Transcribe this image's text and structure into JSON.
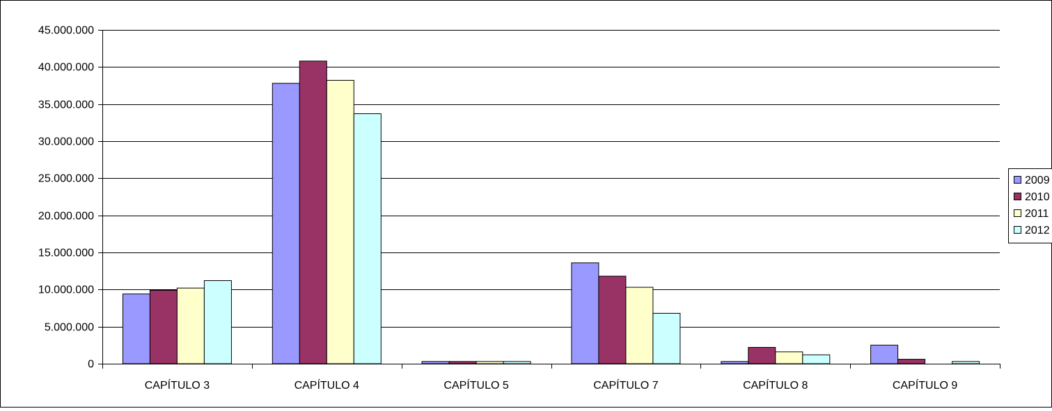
{
  "chart_data": {
    "type": "bar",
    "title": "",
    "xlabel": "",
    "ylabel": "",
    "categories": [
      "CAPÍTULO 3",
      "CAPÍTULO 4",
      "CAPÍTULO 5",
      "CAPÍTULO 7",
      "CAPÍTULO 8",
      "CAPÍTULO 9"
    ],
    "series": [
      {
        "name": "2009",
        "color": "#9999ff",
        "values": [
          9400000,
          37800000,
          300000,
          13600000,
          300000,
          2500000
        ]
      },
      {
        "name": "2010",
        "color": "#993366",
        "values": [
          9900000,
          40800000,
          300000,
          11800000,
          2200000,
          600000
        ]
      },
      {
        "name": "2011",
        "color": "#ffffcc",
        "values": [
          10200000,
          38200000,
          300000,
          10300000,
          1600000,
          0
        ]
      },
      {
        "name": "2012",
        "color": "#ccffff",
        "values": [
          11200000,
          33700000,
          300000,
          6800000,
          1200000,
          300000
        ]
      }
    ],
    "ylim": [
      0,
      45000000
    ],
    "y_ticks": [
      "0",
      "5.000.000",
      "10.000.000",
      "15.000.000",
      "20.000.000",
      "25.000.000",
      "30.000.000",
      "35.000.000",
      "40.000.000",
      "45.000.000"
    ],
    "y_tick_values": [
      0,
      5000000,
      10000000,
      15000000,
      20000000,
      25000000,
      30000000,
      35000000,
      40000000,
      45000000
    ],
    "grid": true,
    "legend": "right"
  }
}
